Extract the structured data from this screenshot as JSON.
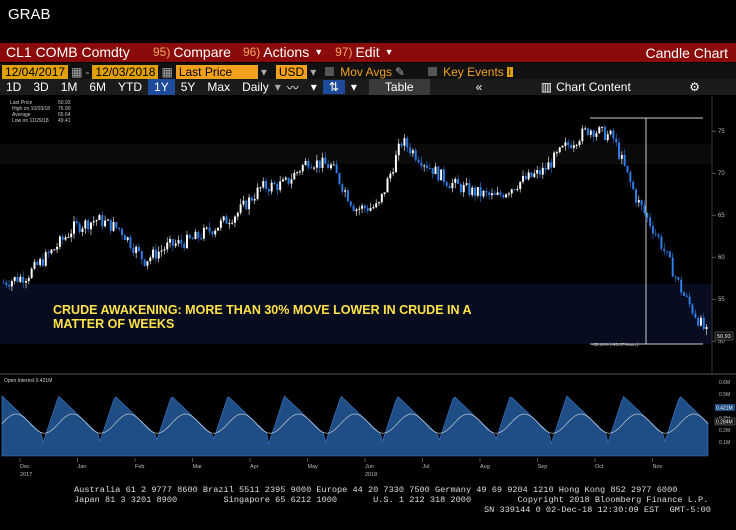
{
  "app": {
    "grab_label": "GRAB"
  },
  "toolbar": {
    "ticker": "CL1 COMB Comdty",
    "compare": {
      "num": "95)",
      "label": "Compare"
    },
    "actions": {
      "num": "96)",
      "label": "Actions"
    },
    "edit": {
      "num": "97)",
      "label": "Edit"
    },
    "chart_type": "Candle Chart"
  },
  "settings": {
    "start_date": "12/04/2017",
    "end_date": "12/03/2018",
    "field": "Last Price",
    "currency": "USD",
    "mov_avgs": "Mov Avgs",
    "key_events": "Key Events"
  },
  "periods": {
    "items": [
      "1D",
      "3D",
      "1M",
      "6M",
      "YTD",
      "1Y",
      "5Y",
      "Max"
    ],
    "selected": "1Y",
    "frequency": "Daily",
    "table_label": "Table",
    "chart_content_label": "Chart Content"
  },
  "legend": {
    "last_price": "Last Price",
    "last_price_val": "50.93",
    "high": "High on 10/03/18",
    "high_val": "76.90",
    "average": "Average",
    "average_val": "65.64",
    "low": "Low on 11/29/18",
    "low_val": "49.41"
  },
  "annotation": {
    "line1": "CRUDE AWAKENING: MORE THAN 30% MOVE LOWER IN CRUDE IN A",
    "line2": "MATTER OF WEEKS",
    "pct_label": "-35.44% (-93.67%ann.)"
  },
  "last_price_tag": "50.93",
  "lower_panel": {
    "title": "Open Interest 0.421M",
    "oi_tag": "0.421M",
    "second_tag": "0.284M"
  },
  "chart_data": [
    {
      "type": "candlestick",
      "y_ticks": [
        50,
        55,
        60,
        65,
        70,
        75
      ],
      "ylim": [
        48,
        78
      ],
      "x_labels": [
        "Dec\n2017",
        "Jan",
        "Feb",
        "Mar",
        "Apr",
        "May",
        "Jun\n2018",
        "Jul",
        "Aug",
        "Sep",
        "Oct",
        "Nov"
      ],
      "x": [
        "Dec 2017",
        "Dec 2017",
        "Jan",
        "Jan",
        "Jan",
        "Feb",
        "Feb",
        "Mar",
        "Mar",
        "Apr",
        "Apr",
        "Apr",
        "May",
        "May",
        "May",
        "Jun",
        "Jun",
        "Jul",
        "Jul",
        "Jul",
        "Aug",
        "Aug",
        "Sep",
        "Sep",
        "Sep",
        "Oct",
        "Oct",
        "Oct",
        "Nov",
        "Nov",
        "Nov"
      ],
      "close": [
        57.0,
        57.8,
        60.5,
        63.5,
        64.5,
        63.3,
        59.6,
        61.3,
        62.0,
        63.5,
        65.3,
        68.3,
        68.7,
        71.5,
        70.8,
        65.8,
        66.0,
        73.8,
        71.2,
        68.9,
        67.8,
        67.1,
        68.9,
        70.2,
        73.2,
        75.3,
        74.3,
        67.0,
        62.0,
        55.6,
        50.93
      ],
      "high_point": {
        "date": "10/03/18",
        "value": 76.9
      },
      "low_point": {
        "date": "11/29/18",
        "value": 49.41
      }
    },
    {
      "type": "area",
      "series": [
        {
          "name": "Open Interest",
          "last": 0.421
        }
      ],
      "y_ticks": [
        "0.6M",
        "0.5M",
        "0.4M",
        "0.3M",
        "0.2M",
        "0.1M"
      ],
      "ylim": [
        0,
        0.65
      ]
    }
  ],
  "footer": {
    "line1": "Australia 61 2 9777 8600 Brazil 5511 2395 9000 Europe 44 20 7330 7500 Germany 49 69 9204 1210 Hong Kong 852 2977 6000",
    "line2": "Japan 81 3 3201 8900         Singapore 65 6212 1000       U.S. 1 212 318 2000         Copyright 2018 Bloomberg Finance L.P.",
    "line3": "SN 339144 0 02-Dec-18 12:30:09 EST  GMT-5:00"
  },
  "colors": {
    "up": "#ffffff",
    "down": "#2e7de9",
    "title_bar": "#8b0b0b",
    "field": "#e0a100",
    "annotation": "#ffe24a",
    "oi": "#1f4d85"
  }
}
